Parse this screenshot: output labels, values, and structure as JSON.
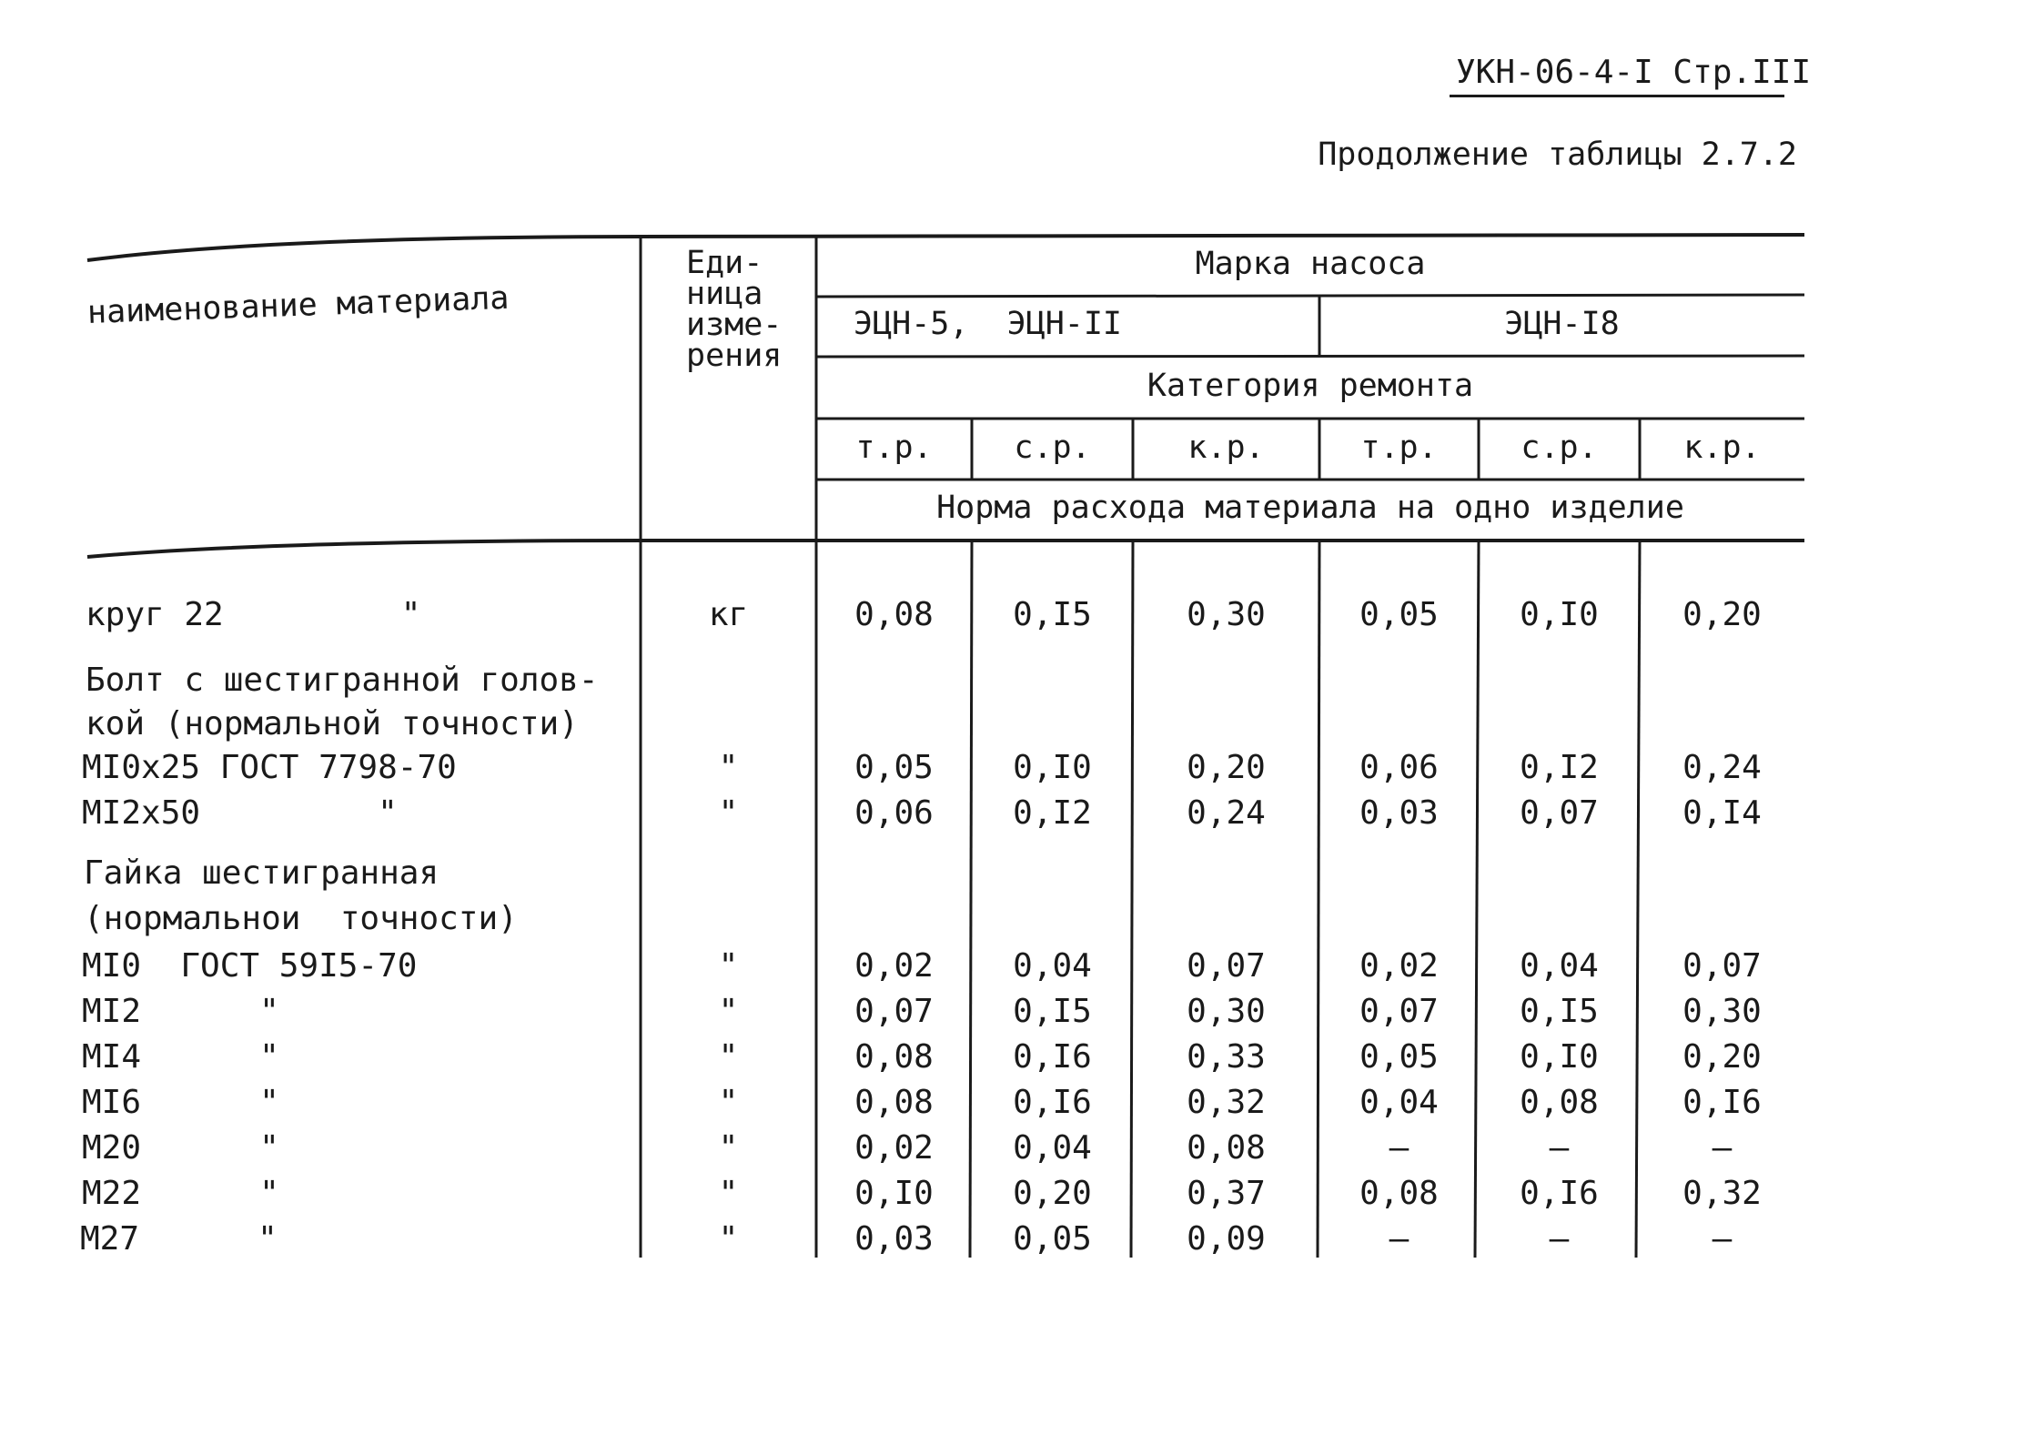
{
  "page_code": "УКН-06-4-I Стр.III",
  "table_caption": "Продолжение таблицы 2.7.2",
  "header": {
    "material_col": "наименование материала",
    "unit_col": [
      "Еди-",
      "ница",
      "изме-",
      "рения"
    ],
    "pump_brand": "Марка насоса",
    "pump_groups": [
      "ЭЦН-5,  ЭЦН-II",
      "ЭЦН-I8"
    ],
    "repair_category": "Категория ремонта",
    "categories": [
      "т.р.",
      "с.р.",
      "к.р.",
      "т.р.",
      "с.р.",
      "к.р."
    ],
    "norm_caption": "Норма расхода материала на одно изделие"
  },
  "rows": [
    {
      "name": "круг 22         \"",
      "unit": "кг",
      "values": [
        "0,08",
        "0,I5",
        "0,30",
        "0,05",
        "0,I0",
        "0,20"
      ]
    },
    {
      "name": "Болт с шестигранной голов-",
      "unit": "",
      "values": []
    },
    {
      "name": "кой (нормальной точности)",
      "unit": "",
      "values": []
    },
    {
      "name": "MI0x25 ГОСТ 7798-70",
      "unit": "\"",
      "values": [
        "0,05",
        "0,I0",
        "0,20",
        "0,06",
        "0,I2",
        "0,24"
      ]
    },
    {
      "name": "MI2x50         \"",
      "unit": "\"",
      "values": [
        "0,06",
        "0,I2",
        "0,24",
        "0,03",
        "0,07",
        "0,I4"
      ]
    },
    {
      "name": "Гайка шестигранная",
      "unit": "",
      "values": []
    },
    {
      "name": "(нормальнои  точности)",
      "unit": "",
      "values": []
    },
    {
      "name": "MI0  ГОСТ 59I5-70",
      "unit": "\"",
      "values": [
        "0,02",
        "0,04",
        "0,07",
        "0,02",
        "0,04",
        "0,07"
      ]
    },
    {
      "name": "MI2      \"",
      "unit": "\"",
      "values": [
        "0,07",
        "0,I5",
        "0,30",
        "0,07",
        "0,I5",
        "0,30"
      ]
    },
    {
      "name": "MI4      \"",
      "unit": "\"",
      "values": [
        "0,08",
        "0,I6",
        "0,33",
        "0,05",
        "0,I0",
        "0,20"
      ]
    },
    {
      "name": "MI6      \"",
      "unit": "\"",
      "values": [
        "0,08",
        "0,I6",
        "0,32",
        "0,04",
        "0,08",
        "0,I6"
      ]
    },
    {
      "name": "M20      \"",
      "unit": "\"",
      "values": [
        "0,02",
        "0,04",
        "0,08",
        "–",
        "–",
        "–"
      ]
    },
    {
      "name": "M22      \"",
      "unit": "\"",
      "values": [
        "0,I0",
        "0,20",
        "0,37",
        "0,08",
        "0,I6",
        "0,32"
      ]
    },
    {
      "name": "M27      \"",
      "unit": "\"",
      "values": [
        "0,03",
        "0,05",
        "0,09",
        "–",
        "–",
        "–"
      ]
    }
  ]
}
